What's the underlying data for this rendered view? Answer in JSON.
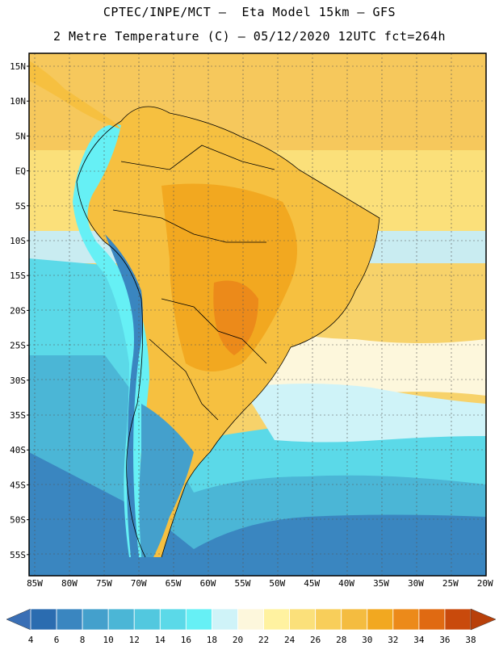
{
  "header": {
    "line1": "CPTEC/INPE/MCT –  Eta Model 15km – GFS",
    "line2": "2 Metre Temperature (C) – 05/12/2020 12UTC fct=264h"
  },
  "axes": {
    "lat_labels": [
      "15N",
      "10N",
      "5N",
      "EQ",
      "5S",
      "10S",
      "15S",
      "20S",
      "25S",
      "30S",
      "35S",
      "40S",
      "45S",
      "50S",
      "55S"
    ],
    "lon_labels": [
      "85W",
      "80W",
      "75W",
      "70W",
      "65W",
      "60W",
      "55W",
      "50W",
      "45W",
      "40W",
      "35W",
      "30W",
      "25W",
      "20W"
    ]
  },
  "colorbar": {
    "labels": [
      "4",
      "6",
      "8",
      "10",
      "12",
      "14",
      "16",
      "18",
      "20",
      "22",
      "24",
      "26",
      "28",
      "30",
      "32",
      "34",
      "36",
      "38"
    ],
    "colors": [
      "#2b6cb0",
      "#3a86c0",
      "#44a0cc",
      "#4bb6d6",
      "#52c8df",
      "#5bd9e8",
      "#66f0f5",
      "#cff3f8",
      "#fdf7dc",
      "#fff2a0",
      "#fbe07a",
      "#f8ce5a",
      "#f4bc40",
      "#f2a820",
      "#ec8a1a",
      "#e06a12",
      "#c94a0c"
    ],
    "arrow_left": "#3a6fb5",
    "arrow_right": "#b8400a"
  }
}
